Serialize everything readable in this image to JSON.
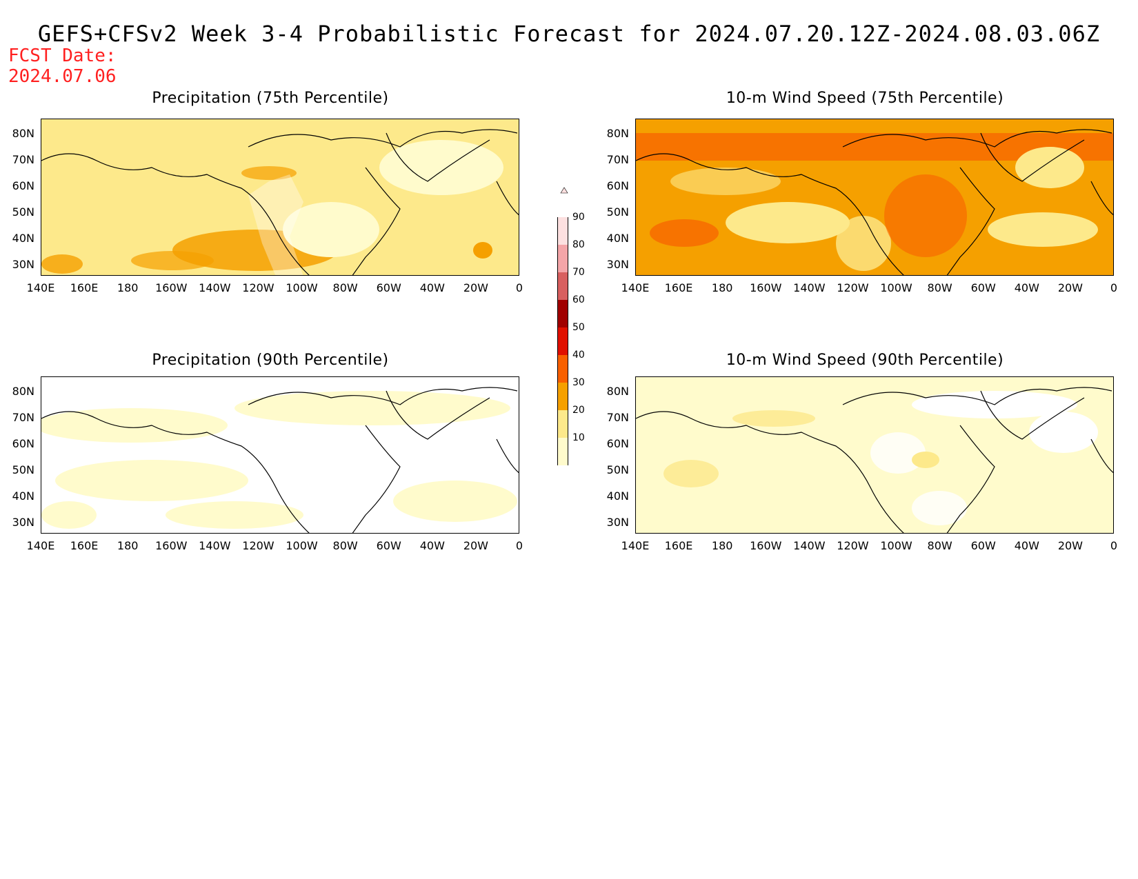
{
  "header": {
    "title": "GEFS+CFSv2 Week 3-4 Probabilistic Forecast for 2024.07.20.12Z-2024.08.03.06Z",
    "fcst_label": "FCST Date:",
    "fcst_date": "2024.07.06"
  },
  "panels": [
    {
      "title": "Precipitation (75th Percentile)",
      "intensity": "moderate-yellow"
    },
    {
      "title": "10-m Wind Speed (75th Percentile)",
      "intensity": "high-orange"
    },
    {
      "title": "Precipitation (90th Percentile)",
      "intensity": "low-white"
    },
    {
      "title": "10-m Wind Speed (90th Percentile)",
      "intensity": "low-yellow"
    }
  ],
  "axes": {
    "lat_labels": [
      "80N",
      "70N",
      "60N",
      "50N",
      "40N",
      "30N"
    ],
    "lon_labels": [
      "140E",
      "160E",
      "180",
      "160W",
      "140W",
      "120W",
      "100W",
      "80W",
      "60W",
      "40W",
      "20W",
      "0"
    ]
  },
  "colorbar": {
    "levels": [
      "90",
      "80",
      "70",
      "60",
      "50",
      "40",
      "30",
      "20",
      "10"
    ],
    "colors": [
      "#fde0e0",
      "#f4a5a8",
      "#d86060",
      "#a00000",
      "#e01000",
      "#f86000",
      "#f5a000",
      "#fde98b",
      "#fffbcc"
    ]
  }
}
